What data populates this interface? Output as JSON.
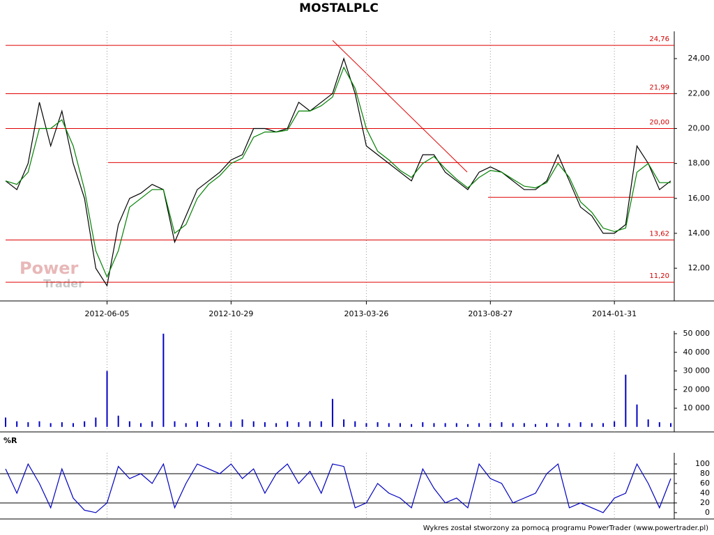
{
  "chart_data": [
    {
      "type": "line",
      "title": "MOSTALPLC",
      "categories": [
        null,
        null,
        null,
        null,
        null,
        null,
        null,
        null,
        null,
        "2012-06-05",
        null,
        null,
        null,
        null,
        null,
        null,
        null,
        null,
        null,
        null,
        "2012-10-29",
        null,
        null,
        null,
        null,
        null,
        null,
        null,
        null,
        null,
        null,
        null,
        "2013-03-26",
        null,
        null,
        null,
        null,
        null,
        null,
        null,
        null,
        null,
        null,
        "2013-08-27",
        null,
        null,
        null,
        null,
        null,
        null,
        null,
        null,
        null,
        null,
        "2014-01-31",
        null,
        null,
        null,
        null,
        null
      ],
      "close": [
        17,
        16.5,
        18,
        21.5,
        19,
        21,
        18,
        16,
        12,
        11,
        14.5,
        16,
        16.3,
        16.8,
        16.5,
        13.5,
        15,
        16.5,
        17,
        17.5,
        18.2,
        18.5,
        20,
        20,
        19.8,
        20,
        21.5,
        21,
        21.5,
        22,
        24,
        22,
        19,
        18.5,
        18,
        17.5,
        17,
        18.5,
        18.5,
        17.5,
        17,
        16.5,
        17.5,
        17.8,
        17.5,
        17,
        16.5,
        16.5,
        17,
        18.5,
        17,
        15.5,
        15,
        14,
        14,
        14.5,
        19,
        18,
        16.5,
        17
      ],
      "ma": [
        17,
        16.8,
        17.5,
        20,
        20,
        20.5,
        19,
        16.5,
        13,
        11.5,
        13,
        15.5,
        16,
        16.5,
        16.5,
        14,
        14.5,
        16,
        16.8,
        17.3,
        18,
        18.3,
        19.5,
        19.8,
        19.8,
        19.9,
        21,
        21,
        21.3,
        21.8,
        23.5,
        22.3,
        20,
        18.7,
        18.2,
        17.6,
        17.2,
        18,
        18.4,
        17.7,
        17.1,
        16.6,
        17.2,
        17.6,
        17.5,
        17.1,
        16.7,
        16.6,
        16.9,
        18,
        17.2,
        15.8,
        15.2,
        14.3,
        14.1,
        14.3,
        17.5,
        18,
        16.9,
        16.9
      ],
      "close_color": "#000000",
      "ma_color": "#008000",
      "levels": [
        {
          "value": 24.76,
          "label": "24,76"
        },
        {
          "value": 21.99,
          "label": "21,99"
        },
        {
          "value": 20.0,
          "label": "20,00"
        },
        {
          "value": 13.62,
          "label": "13,62"
        },
        {
          "value": 11.2,
          "label": "11,20"
        }
      ],
      "support_lines": [
        18.05,
        16.06
      ],
      "level_color": "#e00000",
      "ylim": [
        10.13,
        25.56
      ],
      "yticks": [
        {
          "value": 12,
          "label": "12,00"
        },
        {
          "value": 14,
          "label": "14,00"
        },
        {
          "value": 16,
          "label": "16,00"
        },
        {
          "value": 18,
          "label": "18,00"
        },
        {
          "value": 20,
          "label": "20,00"
        },
        {
          "value": 22,
          "label": "22,00"
        },
        {
          "value": 24,
          "label": "24,00"
        }
      ],
      "watermark": [
        "Power",
        "Trader"
      ]
    },
    {
      "type": "bar",
      "color": "#0000c0",
      "values": [
        5000,
        3000,
        2500,
        3000,
        2000,
        2500,
        2000,
        3000,
        5000,
        30000,
        6000,
        3000,
        2000,
        3000,
        50000,
        3000,
        2000,
        3000,
        2500,
        2000,
        3000,
        4000,
        3000,
        2500,
        2000,
        3000,
        2500,
        3000,
        3000,
        15000,
        4000,
        3000,
        2000,
        2500,
        2000,
        2000,
        1500,
        2500,
        2000,
        2000,
        2000,
        1500,
        2000,
        2000,
        2500,
        2000,
        2000,
        1500,
        2000,
        2000,
        2000,
        2500,
        2000,
        2000,
        3000,
        28000,
        12000,
        4000,
        2500,
        2000
      ],
      "ylim": [
        -2700,
        51500
      ],
      "yticks": [
        {
          "value": 10000,
          "label": "10 000"
        },
        {
          "value": 20000,
          "label": "20 000"
        },
        {
          "value": 30000,
          "label": "30 000"
        },
        {
          "value": 40000,
          "label": "40 000"
        },
        {
          "value": 50000,
          "label": "50 000"
        }
      ]
    },
    {
      "type": "line",
      "title": "%R",
      "color": "#0000c0",
      "values": [
        90,
        40,
        100,
        60,
        10,
        90,
        30,
        5,
        0,
        20,
        95,
        70,
        80,
        60,
        100,
        10,
        60,
        100,
        90,
        80,
        100,
        70,
        90,
        40,
        80,
        100,
        60,
        85,
        40,
        100,
        95,
        10,
        20,
        60,
        40,
        30,
        10,
        90,
        50,
        20,
        30,
        10,
        100,
        70,
        60,
        20,
        30,
        40,
        80,
        100,
        10,
        20,
        10,
        0,
        30,
        40,
        100,
        60,
        10,
        70
      ],
      "reference_lines": [
        20,
        80
      ],
      "ylim": [
        -13,
        123
      ],
      "yticks": [
        0,
        20,
        40,
        60,
        80,
        100
      ]
    }
  ],
  "footer": "Wykres został stworzony za pomocą programu PowerTrader (www.powertrader.pl)"
}
